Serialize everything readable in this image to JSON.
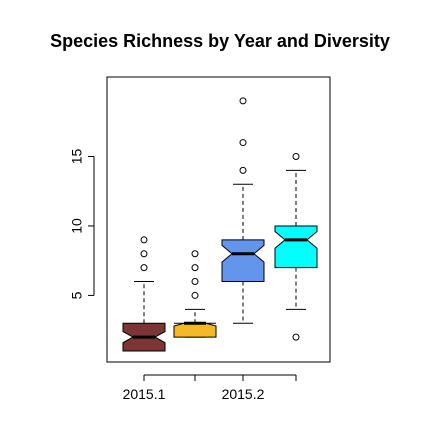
{
  "chart_data": {
    "type": "boxplot",
    "title": "Species Richness by Year and Diversity",
    "xlabel": "",
    "ylabel": "",
    "notched": true,
    "ylim": [
      1,
      20
    ],
    "y_ticks": [
      5,
      10,
      15
    ],
    "x_tick_labels": [
      "2015.1",
      "",
      "2015.2",
      ""
    ],
    "boxes": [
      {
        "color": "#7B3535",
        "whisker_low": 1,
        "q1": 1,
        "median": 2,
        "q3": 3,
        "whisker_high": 6,
        "notch_low": 1.6,
        "notch_high": 2.4,
        "outliers": [
          7,
          8,
          9
        ]
      },
      {
        "color": "#F5B827",
        "whisker_low": 2,
        "q1": 2,
        "median": 3,
        "q3": 3,
        "whisker_high": 4,
        "notch_low": 2.8,
        "notch_high": 3.2,
        "outliers": [
          5,
          6,
          7,
          8
        ]
      },
      {
        "color": "#6495ED",
        "whisker_low": 3,
        "q1": 6,
        "median": 8,
        "q3": 9,
        "whisker_high": 13,
        "notch_low": 7.4,
        "notch_high": 8.6,
        "outliers": [
          14,
          16,
          19
        ]
      },
      {
        "color": "#00FFFF",
        "whisker_low": 4,
        "q1": 7,
        "median": 9,
        "q3": 10,
        "whisker_high": 14,
        "notch_low": 8.4,
        "notch_high": 9.6,
        "outliers": [
          2,
          15
        ]
      }
    ]
  }
}
